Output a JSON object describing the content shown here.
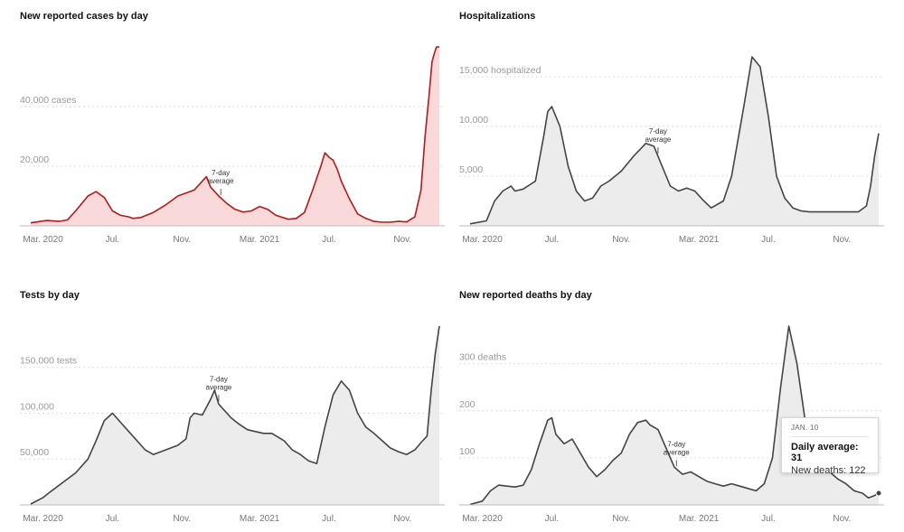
{
  "chart_data": [
    {
      "id": "cases",
      "type": "area",
      "title": "New reported cases by day",
      "unit": "cases",
      "color": "#b31a1a",
      "fill": "#f9d9d9",
      "ylim": [
        0,
        60000
      ],
      "yticks": [
        {
          "value": 20000,
          "label": "20,000"
        },
        {
          "value": 40000,
          "label": "40,000 cases"
        }
      ],
      "xticks": [
        "Mar. 2020",
        "Jul.",
        "Nov.",
        "Mar. 2021",
        "Jul.",
        "Nov."
      ],
      "average_label": [
        "7-day",
        "average"
      ],
      "grid": true,
      "series": {
        "x": [
          0,
          0.04,
          0.07,
          0.09,
          0.11,
          0.14,
          0.16,
          0.18,
          0.2,
          0.22,
          0.24,
          0.25,
          0.27,
          0.3,
          0.33,
          0.36,
          0.4,
          0.43,
          0.44,
          0.46,
          0.48,
          0.5,
          0.52,
          0.54,
          0.56,
          0.58,
          0.6,
          0.63,
          0.65,
          0.67,
          0.69,
          0.71,
          0.72,
          0.73,
          0.74,
          0.75,
          0.76,
          0.78,
          0.8,
          0.82,
          0.84,
          0.86,
          0.88,
          0.9,
          0.92,
          0.94,
          0.955,
          0.965,
          0.975,
          0.982,
          0.988,
          0.993,
          1
        ],
        "y": [
          1000,
          1800,
          1500,
          2000,
          5000,
          10000,
          11500,
          9500,
          5000,
          3500,
          3000,
          2500,
          2800,
          4500,
          7000,
          10000,
          12000,
          16500,
          13000,
          10000,
          7500,
          5500,
          4600,
          5000,
          6500,
          5500,
          3500,
          2200,
          2500,
          4500,
          12000,
          20000,
          24500,
          23000,
          22000,
          19000,
          15000,
          9000,
          4000,
          2500,
          1500,
          1200,
          1200,
          1500,
          1300,
          3000,
          12000,
          30000,
          44000,
          55000,
          58000,
          60000,
          60000
        ]
      }
    },
    {
      "id": "hosp",
      "type": "area",
      "title": "Hospitalizations",
      "unit": "hospitalized",
      "color": "#444444",
      "fill": "#ececec",
      "ylim": [
        0,
        18000
      ],
      "yticks": [
        {
          "value": 5000,
          "label": "5,000"
        },
        {
          "value": 10000,
          "label": "10,000"
        },
        {
          "value": 15000,
          "label": "15,000 hospitalized"
        }
      ],
      "xticks": [
        "Mar. 2020",
        "Jul.",
        "Nov.",
        "Mar. 2021",
        "Jul.",
        "Nov."
      ],
      "average_label": [
        "7-day",
        "average"
      ],
      "grid": true,
      "series": {
        "x": [
          0,
          0.04,
          0.06,
          0.08,
          0.1,
          0.11,
          0.13,
          0.16,
          0.18,
          0.19,
          0.2,
          0.22,
          0.24,
          0.26,
          0.28,
          0.3,
          0.32,
          0.34,
          0.37,
          0.4,
          0.43,
          0.45,
          0.47,
          0.49,
          0.51,
          0.53,
          0.55,
          0.57,
          0.59,
          0.62,
          0.64,
          0.67,
          0.69,
          0.71,
          0.73,
          0.75,
          0.77,
          0.79,
          0.81,
          0.83,
          0.85,
          0.87,
          0.89,
          0.91,
          0.93,
          0.95,
          0.97,
          0.98,
          0.99,
          1
        ],
        "y": [
          200,
          500,
          2500,
          3500,
          4000,
          3500,
          3700,
          4500,
          9000,
          11500,
          12000,
          10000,
          6000,
          3500,
          2500,
          2800,
          4000,
          4500,
          5500,
          7000,
          8300,
          8000,
          6000,
          4000,
          3500,
          3800,
          3500,
          2600,
          1800,
          2500,
          5000,
          12000,
          17000,
          16000,
          11000,
          5000,
          2800,
          1800,
          1500,
          1400,
          1400,
          1400,
          1400,
          1400,
          1400,
          1400,
          2000,
          4000,
          7000,
          9300
        ]
      }
    },
    {
      "id": "tests",
      "type": "area",
      "title": "Tests by day",
      "unit": "tests",
      "color": "#444444",
      "fill": "#ececec",
      "ylim": [
        0,
        195000
      ],
      "yticks": [
        {
          "value": 50000,
          "label": "50,000"
        },
        {
          "value": 100000,
          "label": "100,000"
        },
        {
          "value": 150000,
          "label": "150,000 tests"
        }
      ],
      "xticks": [
        "Mar. 2020",
        "Jul.",
        "Nov.",
        "Mar. 2021",
        "Jul.",
        "Nov."
      ],
      "average_label": [
        "7-day",
        "average"
      ],
      "grid": true,
      "series": {
        "x": [
          0,
          0.03,
          0.05,
          0.08,
          0.11,
          0.14,
          0.16,
          0.18,
          0.2,
          0.21,
          0.22,
          0.24,
          0.26,
          0.28,
          0.3,
          0.33,
          0.36,
          0.38,
          0.39,
          0.4,
          0.42,
          0.44,
          0.45,
          0.46,
          0.47,
          0.49,
          0.51,
          0.53,
          0.55,
          0.57,
          0.59,
          0.62,
          0.64,
          0.66,
          0.68,
          0.7,
          0.72,
          0.74,
          0.76,
          0.78,
          0.8,
          0.82,
          0.84,
          0.86,
          0.88,
          0.9,
          0.92,
          0.94,
          0.955,
          0.97,
          0.98,
          0.99,
          1
        ],
        "y": [
          1000,
          8000,
          15000,
          25000,
          35000,
          50000,
          70000,
          92000,
          100000,
          95000,
          90000,
          80000,
          70000,
          60000,
          55000,
          60000,
          65000,
          72000,
          95000,
          100000,
          98000,
          115000,
          125000,
          110000,
          105000,
          95000,
          88000,
          82000,
          80000,
          78000,
          78000,
          70000,
          60000,
          55000,
          48000,
          45000,
          85000,
          120000,
          135000,
          125000,
          100000,
          85000,
          78000,
          70000,
          62000,
          58000,
          55000,
          60000,
          68000,
          75000,
          125000,
          165000,
          195000
        ]
      }
    },
    {
      "id": "deaths",
      "type": "area",
      "title": "New reported deaths by day",
      "unit": "deaths",
      "color": "#444444",
      "fill": "#ececec",
      "ylim": [
        0,
        380
      ],
      "yticks": [
        {
          "value": 100,
          "label": "100"
        },
        {
          "value": 200,
          "label": "200"
        },
        {
          "value": 300,
          "label": "300 deaths"
        }
      ],
      "xticks": [
        "Mar. 2020",
        "Jul.",
        "Nov.",
        "Mar. 2021",
        "Jul.",
        "Nov."
      ],
      "average_label": [
        "7-day",
        "average"
      ],
      "grid": true,
      "series": {
        "x": [
          0,
          0.03,
          0.05,
          0.07,
          0.09,
          0.11,
          0.13,
          0.15,
          0.17,
          0.19,
          0.2,
          0.21,
          0.23,
          0.25,
          0.27,
          0.29,
          0.31,
          0.33,
          0.35,
          0.37,
          0.39,
          0.41,
          0.43,
          0.44,
          0.45,
          0.46,
          0.48,
          0.5,
          0.52,
          0.54,
          0.56,
          0.58,
          0.6,
          0.62,
          0.64,
          0.66,
          0.68,
          0.7,
          0.72,
          0.74,
          0.76,
          0.78,
          0.8,
          0.82,
          0.84,
          0.86,
          0.88,
          0.9,
          0.92,
          0.94,
          0.96,
          0.975,
          0.99,
          1
        ],
        "y": [
          1,
          8,
          30,
          42,
          40,
          38,
          42,
          75,
          130,
          180,
          185,
          150,
          130,
          140,
          110,
          80,
          60,
          75,
          95,
          110,
          150,
          175,
          180,
          170,
          165,
          160,
          120,
          80,
          65,
          70,
          60,
          50,
          45,
          40,
          45,
          40,
          35,
          30,
          45,
          100,
          250,
          380,
          300,
          180,
          120,
          80,
          70,
          55,
          45,
          30,
          25,
          15,
          20,
          25
        ]
      },
      "tooltip": {
        "date": "JAN. 10",
        "daily_average_label": "Daily average: 31",
        "new_deaths_label": "New deaths: 122"
      }
    }
  ]
}
